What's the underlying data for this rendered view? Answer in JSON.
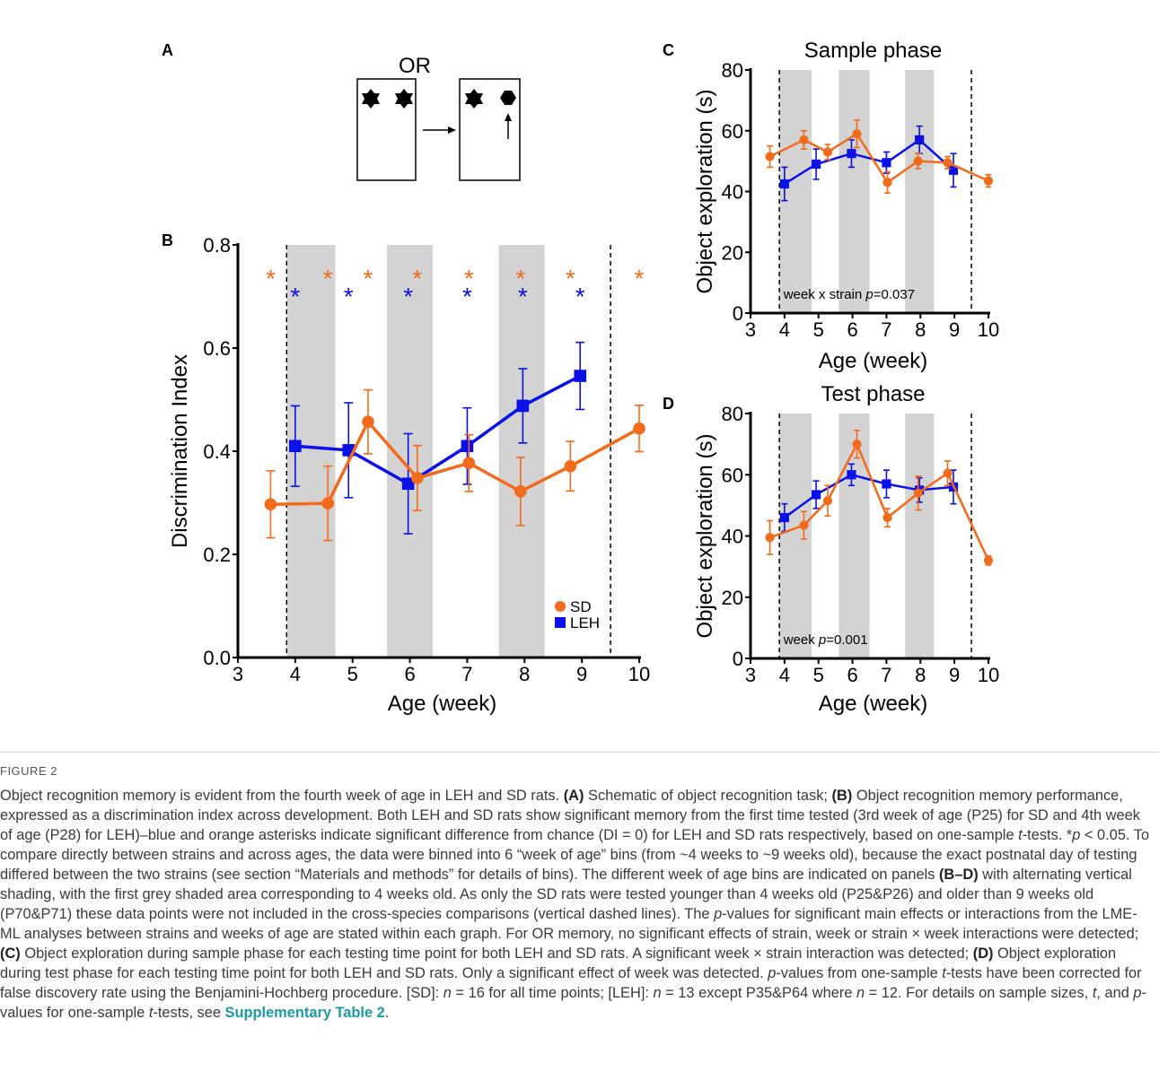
{
  "panel_labels": {
    "a": "A",
    "b": "B",
    "c": "C",
    "d": "D"
  },
  "schematic": {
    "title": "OR"
  },
  "colors": {
    "sd": "#f26a1b",
    "leh": "#0a10e6",
    "shade": "#d3d3d3"
  },
  "legend": {
    "sd": "SD",
    "leh": "LEH"
  },
  "chart_data": [
    {
      "panel": "B",
      "type": "line",
      "xlabel": "Age (week)",
      "ylabel": "Discrimination Index",
      "xlim": [
        3,
        10
      ],
      "ylim": [
        0,
        0.8
      ],
      "xticks": [
        3,
        4,
        5,
        6,
        7,
        8,
        9,
        10
      ],
      "yticks": [
        "0.0",
        "0.2",
        "0.4",
        "0.6",
        "0.8"
      ],
      "yticks_values": [
        0,
        0.2,
        0.4,
        0.6,
        0.8
      ],
      "shaded_weeks": [
        [
          3.85,
          4.7
        ],
        [
          5.6,
          6.4
        ],
        [
          7.55,
          8.35
        ]
      ],
      "dashed_lines": [
        3.85,
        9.5
      ],
      "series": [
        {
          "name": "SD",
          "marker": "circle",
          "x": [
            3.57,
            4.57,
            5.27,
            6.13,
            7.03,
            7.93,
            8.8,
            10.0
          ],
          "y": [
            0.297,
            0.299,
            0.457,
            0.348,
            0.377,
            0.322,
            0.371,
            0.444
          ],
          "err": [
            0.065,
            0.072,
            0.062,
            0.063,
            0.055,
            0.066,
            0.048,
            0.045
          ]
        },
        {
          "name": "LEH",
          "marker": "square",
          "x": [
            4.0,
            4.93,
            5.97,
            7.0,
            7.97,
            8.97
          ],
          "y": [
            0.41,
            0.402,
            0.337,
            0.41,
            0.488,
            0.546
          ],
          "err": [
            0.078,
            0.092,
            0.097,
            0.074,
            0.072,
            0.065
          ]
        }
      ],
      "significance": {
        "symbol": "*",
        "sd_x": [
          3.57,
          4.57,
          5.27,
          6.13,
          7.03,
          7.93,
          8.8,
          10.0
        ],
        "leh_x": [
          4.0,
          4.93,
          5.97,
          7.0,
          7.97,
          8.97
        ]
      }
    },
    {
      "panel": "C",
      "type": "line",
      "title": "Sample phase",
      "xlabel": "Age (week)",
      "ylabel": "Object exploration (s)",
      "xlim": [
        3,
        10
      ],
      "ylim": [
        0,
        80
      ],
      "xticks": [
        3,
        4,
        5,
        6,
        7,
        8,
        9,
        10
      ],
      "yticks": [
        "0",
        "20",
        "40",
        "60",
        "80"
      ],
      "yticks_values": [
        0,
        20,
        40,
        60,
        80
      ],
      "shaded_weeks": [
        [
          3.85,
          4.8
        ],
        [
          5.6,
          6.5
        ],
        [
          7.55,
          8.4
        ]
      ],
      "dashed_lines": [
        3.85,
        9.5
      ],
      "annotation": {
        "prefix": "week x strain ",
        "italic": "p",
        "suffix": "=0.037"
      },
      "series": [
        {
          "name": "SD",
          "marker": "circle",
          "x": [
            3.57,
            4.57,
            5.27,
            6.13,
            7.03,
            7.93,
            8.8,
            10.0
          ],
          "y": [
            51.5,
            57.0,
            53.0,
            59.0,
            43.0,
            50.0,
            49.5,
            43.5
          ],
          "err": [
            3.5,
            3.0,
            2.5,
            4.5,
            3.5,
            2.5,
            2.0,
            2.0
          ]
        },
        {
          "name": "LEH",
          "marker": "square",
          "x": [
            4.0,
            4.93,
            5.97,
            7.0,
            7.97,
            8.97
          ],
          "y": [
            42.5,
            49.0,
            52.5,
            49.5,
            57.0,
            47.0
          ],
          "err": [
            5.5,
            5.0,
            4.5,
            3.5,
            4.5,
            5.5
          ]
        }
      ]
    },
    {
      "panel": "D",
      "type": "line",
      "title": "Test phase",
      "xlabel": "Age (week)",
      "ylabel": "Object exploration (s)",
      "xlim": [
        3,
        10
      ],
      "ylim": [
        0,
        80
      ],
      "xticks": [
        3,
        4,
        5,
        6,
        7,
        8,
        9,
        10
      ],
      "yticks": [
        "0",
        "20",
        "40",
        "60",
        "80"
      ],
      "yticks_values": [
        0,
        20,
        40,
        60,
        80
      ],
      "shaded_weeks": [
        [
          3.85,
          4.8
        ],
        [
          5.6,
          6.5
        ],
        [
          7.55,
          8.4
        ]
      ],
      "dashed_lines": [
        3.85,
        9.5
      ],
      "annotation": {
        "prefix": "week ",
        "italic": "p",
        "suffix": "=0.001"
      },
      "series": [
        {
          "name": "SD",
          "marker": "circle",
          "x": [
            3.57,
            4.57,
            5.27,
            6.13,
            7.03,
            7.93,
            8.8,
            10.0
          ],
          "y": [
            39.5,
            43.5,
            51.5,
            70.0,
            46.0,
            54.0,
            60.5,
            32.0
          ],
          "err": [
            5.5,
            4.5,
            5.0,
            4.5,
            3.0,
            5.5,
            4.0,
            1.5
          ]
        },
        {
          "name": "LEH",
          "marker": "square",
          "x": [
            4.0,
            4.93,
            5.97,
            7.0,
            7.97,
            8.97
          ],
          "y": [
            46.0,
            53.5,
            60.0,
            57.0,
            55.0,
            56.0
          ],
          "err": [
            4.5,
            4.5,
            3.5,
            4.5,
            4.0,
            5.5
          ]
        }
      ]
    }
  ],
  "caption": {
    "figure_label": "FIGURE 2",
    "p1": "Object recognition memory is evident from the fourth week of age in LEH and SD rats. ",
    "a": "(A)",
    "p2": " Schematic of object recognition task; ",
    "b": "(B)",
    "p3": " Object recognition memory performance, expressed as a discrimination index across development. Both LEH and SD rats show significant memory from the first time tested (3rd week of age (P25) for SD and 4th week of age (P28) for LEH)–blue and orange asterisks indicate significant difference from chance (DI = 0) for LEH and SD rats respectively, based on one-sample ",
    "t1": "t",
    "p4": "-tests. *",
    "pv1": "p",
    "p5": " < 0.05. To compare directly between strains and across ages, the data were binned into 6 “week of age” bins (from ~4 weeks to ~9 weeks old), because the exact postnatal day of testing differed between the two strains (see section “Materials and methods” for details of bins). The different week of age bins are indicated on panels ",
    "bd": "(B–D)",
    "p6": " with alternating vertical shading, with the first grey shaded area corresponding to 4 weeks old. As only the SD rats were tested younger than 4 weeks old (P25&P26) and older than 9 weeks old (P70&P71) these data points were not included in the cross-species comparisons (vertical dashed lines). The ",
    "pv2": "p",
    "p7": "-values for significant main effects or interactions from the LME-ML analyses between strains and weeks of age are stated within each graph. For OR memory, no significant effects of strain, week or strain × week interactions were detected; ",
    "c": "(C)",
    "p8": " Object exploration during sample phase for each testing time point for both LEH and SD rats. A significant week × strain interaction was detected; ",
    "d": "(D)",
    "p9": " Object exploration during test phase for each testing time point for both LEH and SD rats. Only a significant effect of week was detected. ",
    "pv3": "p",
    "p10": "-values from one-sample ",
    "t2": "t",
    "p11": "-tests have been corrected for false discovery rate using the Benjamini-Hochberg procedure. [SD]: ",
    "n1": "n",
    "p12": " = 16 for all time points; [LEH]: ",
    "n2": "n",
    "p13": " = 13 except P35&P64 where ",
    "n3": "n",
    "p14": " = 12. For details on sample sizes, ",
    "t3": "t",
    "p15": ", and ",
    "pv4": "p",
    "p16": "-values for one-sample ",
    "t4": "t",
    "p17": "-tests, see ",
    "link": "Supplementary Table 2",
    "p18": "."
  }
}
